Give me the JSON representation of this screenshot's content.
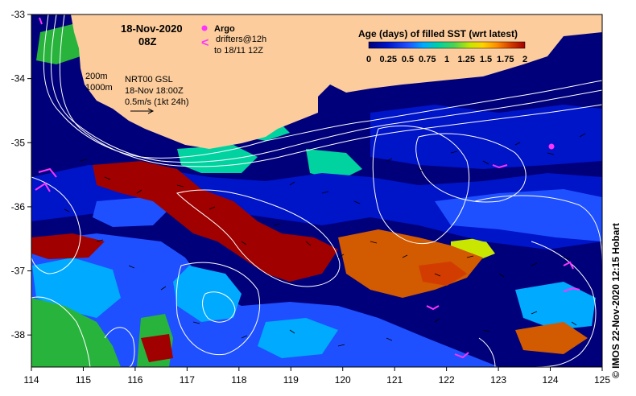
{
  "header": {
    "date": "18-Nov-2020",
    "time": "08Z"
  },
  "legend": {
    "argo_label": "Argo",
    "drifters_line1": "drifters@12h",
    "drifters_line2": "to 18/11 12Z",
    "argo_color": "#ff33ff",
    "drifter_color": "#ff33ff"
  },
  "contours": {
    "depth1": "200m",
    "depth2": "1000m"
  },
  "product": {
    "line1": "NRT00 GSL",
    "line2": "18-Nov 18:00Z",
    "scale": "0.5m/s (1kt 24h)"
  },
  "colorbar": {
    "title": "Age (days) of filled SST (wrt latest)",
    "ticks": [
      "0",
      "0.25",
      "0.5",
      "0.75",
      "1",
      "1.25",
      "1.5",
      "1.75",
      "2"
    ],
    "colors": [
      "#00007a",
      "#0014c8",
      "#1e50ff",
      "#00aaff",
      "#00d2a0",
      "#50d250",
      "#c8e600",
      "#ffd200",
      "#ff8c00",
      "#d23c00",
      "#a00000"
    ]
  },
  "credit": "© IMOS 22-Nov-2020 12:15 Hobart",
  "map_data": {
    "lon_range": [
      114,
      125
    ],
    "lat_range": [
      -38.5,
      -33
    ],
    "lon_ticks": [
      "114",
      "115",
      "116",
      "117",
      "118",
      "119",
      "120",
      "121",
      "122",
      "123",
      "124",
      "125"
    ],
    "lat_ticks": [
      "-33",
      "-34",
      "-35",
      "-36",
      "-37",
      "-38"
    ],
    "colors": {
      "land": "#fccc9c",
      "deep_navy": "#00007a",
      "dark_blue": "#0014c8",
      "royal_blue": "#1e50ff",
      "light_blue": "#00aaff",
      "teal": "#00d2a0",
      "green": "#28b43c",
      "yellow": "#ffd200",
      "orange": "#d25a00",
      "dark_red": "#a00000",
      "contour": "#ffffff"
    }
  }
}
